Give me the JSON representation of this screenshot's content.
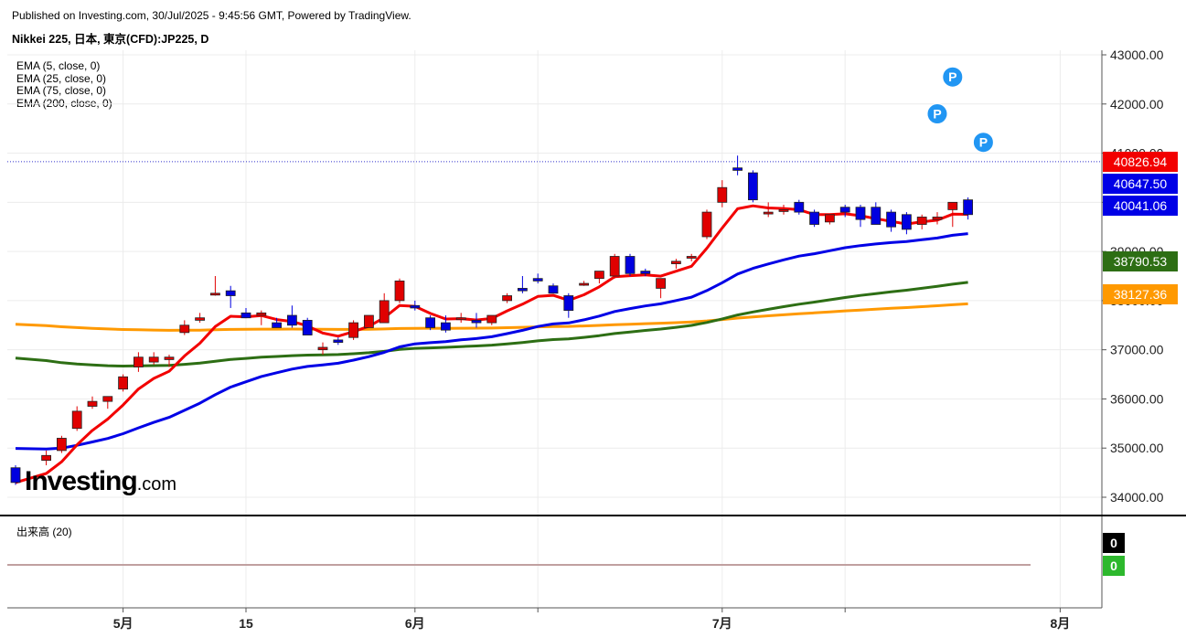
{
  "header": {
    "published": "Published on Investing.com, 30/Jul/2025 - 9:45:56 GMT, Powered by TradingView.",
    "symbol": "Nikkei 225, 日本, 東京(CFD):JP225, D"
  },
  "legend": {
    "ema5": "EMA (5, close, 0)",
    "ema25": "EMA (25, close, 0)",
    "ema75": "EMA (75, close, 0)",
    "ema200": "EMA (200, close, 0)"
  },
  "volume_label": "出来高 (20)",
  "logo": {
    "main": "Investing",
    "suffix": ".com"
  },
  "colors": {
    "up": "#e00000",
    "down": "#0000e0",
    "ema5": "#f20000",
    "ema25": "#0000e6",
    "ema75": "#2d6e14",
    "ema200": "#ff9900",
    "price_line": "#3333cc",
    "grid": "#ececec"
  },
  "chart_data": {
    "type": "candlestick",
    "y_axis": {
      "range": [
        33700,
        43200
      ],
      "ticks": [
        43000,
        42000,
        41000,
        40000,
        39000,
        38000,
        37000,
        36000,
        35000,
        34000
      ],
      "tick_labels": [
        "43000.00",
        "42000.00",
        "41000.00",
        "40000.00",
        "39000.00",
        "38000.00",
        "37000.00",
        "36000.00",
        "35000.00",
        "34000.00"
      ]
    },
    "x_axis": {
      "labels": [
        {
          "index": 7,
          "label": "5月"
        },
        {
          "index": 15,
          "label": "15"
        },
        {
          "index": 26,
          "label": "6月"
        },
        {
          "index": 46,
          "label": "7月"
        },
        {
          "index": 68,
          "label": "8月"
        }
      ],
      "minor_ticks": [
        34,
        54
      ]
    },
    "price_labels": [
      {
        "name": "EMA 5 / last",
        "value": "40826.94",
        "price": 40826.94,
        "color": "#f20000"
      },
      {
        "name": "EMA 25",
        "value": "40647.50",
        "price": 40647.5,
        "color": "#0000e6"
      },
      {
        "name": "EMA 25 line",
        "value": "40041.06",
        "price": 40041.06,
        "color": "#0000e6"
      },
      {
        "name": "EMA 75",
        "value": "38790.53",
        "price": 38790.53,
        "color": "#2d6e14"
      },
      {
        "name": "EMA 200",
        "value": "38127.36",
        "price": 38127.36,
        "color": "#ff9900"
      }
    ],
    "last_price": 40826.94,
    "markers": [
      {
        "index": 61,
        "price": 42550,
        "label": "P"
      },
      {
        "index": 60,
        "price": 41800,
        "label": "P"
      },
      {
        "index": 63,
        "price": 41220,
        "label": "P"
      }
    ],
    "candles": [
      {
        "i": 0,
        "o": 34600,
        "h": 34650,
        "l": 34250,
        "c": 34300
      },
      {
        "i": 2,
        "o": 34750,
        "h": 34950,
        "l": 34650,
        "c": 34850
      },
      {
        "i": 3,
        "o": 34950,
        "h": 35250,
        "l": 34900,
        "c": 35200
      },
      {
        "i": 4,
        "o": 35400,
        "h": 35850,
        "l": 35350,
        "c": 35750
      },
      {
        "i": 5,
        "o": 35850,
        "h": 36050,
        "l": 35800,
        "c": 35950
      },
      {
        "i": 6,
        "o": 35950,
        "h": 36050,
        "l": 35800,
        "c": 36050
      },
      {
        "i": 7,
        "o": 36200,
        "h": 36500,
        "l": 36150,
        "c": 36450
      },
      {
        "i": 8,
        "o": 36650,
        "h": 36950,
        "l": 36550,
        "c": 36850
      },
      {
        "i": 9,
        "o": 36750,
        "h": 36950,
        "l": 36700,
        "c": 36850
      },
      {
        "i": 10,
        "o": 36800,
        "h": 36900,
        "l": 36650,
        "c": 36850
      },
      {
        "i": 11,
        "o": 37350,
        "h": 37600,
        "l": 37300,
        "c": 37500
      },
      {
        "i": 12,
        "o": 37600,
        "h": 37750,
        "l": 37550,
        "c": 37650
      },
      {
        "i": 13,
        "o": 38150,
        "h": 38500,
        "l": 38100,
        "c": 38150
      },
      {
        "i": 14,
        "o": 38200,
        "h": 38300,
        "l": 37850,
        "c": 38100
      },
      {
        "i": 15,
        "o": 37750,
        "h": 37850,
        "l": 37700,
        "c": 37650
      },
      {
        "i": 16,
        "o": 37700,
        "h": 37800,
        "l": 37500,
        "c": 37750
      },
      {
        "i": 17,
        "o": 37550,
        "h": 37650,
        "l": 37450,
        "c": 37450
      },
      {
        "i": 18,
        "o": 37700,
        "h": 37900,
        "l": 37450,
        "c": 37500
      },
      {
        "i": 19,
        "o": 37600,
        "h": 37650,
        "l": 37300,
        "c": 37300
      },
      {
        "i": 20,
        "o": 37000,
        "h": 37150,
        "l": 36900,
        "c": 37050
      },
      {
        "i": 21,
        "o": 37200,
        "h": 37250,
        "l": 37100,
        "c": 37150
      },
      {
        "i": 22,
        "o": 37250,
        "h": 37600,
        "l": 37200,
        "c": 37550
      },
      {
        "i": 23,
        "o": 37450,
        "h": 37700,
        "l": 37450,
        "c": 37700
      },
      {
        "i": 24,
        "o": 37550,
        "h": 38150,
        "l": 37550,
        "c": 38000
      },
      {
        "i": 25,
        "o": 38000,
        "h": 38450,
        "l": 37950,
        "c": 38400
      },
      {
        "i": 26,
        "o": 37900,
        "h": 38000,
        "l": 37800,
        "c": 37850
      },
      {
        "i": 27,
        "o": 37650,
        "h": 37700,
        "l": 37400,
        "c": 37450
      },
      {
        "i": 28,
        "o": 37550,
        "h": 37700,
        "l": 37350,
        "c": 37400
      },
      {
        "i": 29,
        "o": 37650,
        "h": 37750,
        "l": 37550,
        "c": 37650
      },
      {
        "i": 30,
        "o": 37600,
        "h": 37750,
        "l": 37450,
        "c": 37550
      },
      {
        "i": 31,
        "o": 37550,
        "h": 37700,
        "l": 37500,
        "c": 37700
      },
      {
        "i": 32,
        "o": 38000,
        "h": 38150,
        "l": 37950,
        "c": 38100
      },
      {
        "i": 33,
        "o": 38250,
        "h": 38500,
        "l": 38150,
        "c": 38200
      },
      {
        "i": 34,
        "o": 38450,
        "h": 38550,
        "l": 38350,
        "c": 38400
      },
      {
        "i": 35,
        "o": 38300,
        "h": 38350,
        "l": 38200,
        "c": 38150
      },
      {
        "i": 36,
        "o": 38100,
        "h": 38150,
        "l": 37650,
        "c": 37800
      },
      {
        "i": 37,
        "o": 38350,
        "h": 38400,
        "l": 38300,
        "c": 38350
      },
      {
        "i": 38,
        "o": 38450,
        "h": 38550,
        "l": 38350,
        "c": 38600
      },
      {
        "i": 39,
        "o": 38500,
        "h": 38950,
        "l": 38450,
        "c": 38900
      },
      {
        "i": 40,
        "o": 38900,
        "h": 38950,
        "l": 38500,
        "c": 38550
      },
      {
        "i": 41,
        "o": 38600,
        "h": 38650,
        "l": 38500,
        "c": 38550
      },
      {
        "i": 42,
        "o": 38250,
        "h": 38450,
        "l": 38050,
        "c": 38450
      },
      {
        "i": 43,
        "o": 38750,
        "h": 38850,
        "l": 38650,
        "c": 38800
      },
      {
        "i": 44,
        "o": 38900,
        "h": 38950,
        "l": 38800,
        "c": 38900
      },
      {
        "i": 45,
        "o": 39300,
        "h": 39850,
        "l": 39250,
        "c": 39800
      },
      {
        "i": 46,
        "o": 40000,
        "h": 40450,
        "l": 39900,
        "c": 40300
      },
      {
        "i": 47,
        "o": 40700,
        "h": 40950,
        "l": 40550,
        "c": 40650
      },
      {
        "i": 48,
        "o": 40600,
        "h": 40650,
        "l": 40000,
        "c": 40050
      },
      {
        "i": 49,
        "o": 39800,
        "h": 40000,
        "l": 39700,
        "c": 39800
      },
      {
        "i": 50,
        "o": 39850,
        "h": 39950,
        "l": 39750,
        "c": 39850
      },
      {
        "i": 51,
        "o": 40000,
        "h": 40050,
        "l": 39750,
        "c": 39800
      },
      {
        "i": 52,
        "o": 39800,
        "h": 39850,
        "l": 39500,
        "c": 39550
      },
      {
        "i": 53,
        "o": 39600,
        "h": 39750,
        "l": 39550,
        "c": 39750
      },
      {
        "i": 54,
        "o": 39900,
        "h": 39950,
        "l": 39700,
        "c": 39800
      },
      {
        "i": 55,
        "o": 39900,
        "h": 39950,
        "l": 39500,
        "c": 39650
      },
      {
        "i": 56,
        "o": 39900,
        "h": 40000,
        "l": 39550,
        "c": 39550
      },
      {
        "i": 57,
        "o": 39800,
        "h": 39850,
        "l": 39400,
        "c": 39500
      },
      {
        "i": 58,
        "o": 39750,
        "h": 39800,
        "l": 39350,
        "c": 39450
      },
      {
        "i": 59,
        "o": 39550,
        "h": 39750,
        "l": 39450,
        "c": 39700
      },
      {
        "i": 60,
        "o": 39650,
        "h": 39800,
        "l": 39550,
        "c": 39700
      },
      {
        "i": 61,
        "o": 39850,
        "h": 40000,
        "l": 39500,
        "c": 40000
      },
      {
        "i": 62,
        "o": 40050,
        "h": 40100,
        "l": 39650,
        "c": 39750
      }
    ]
  }
}
